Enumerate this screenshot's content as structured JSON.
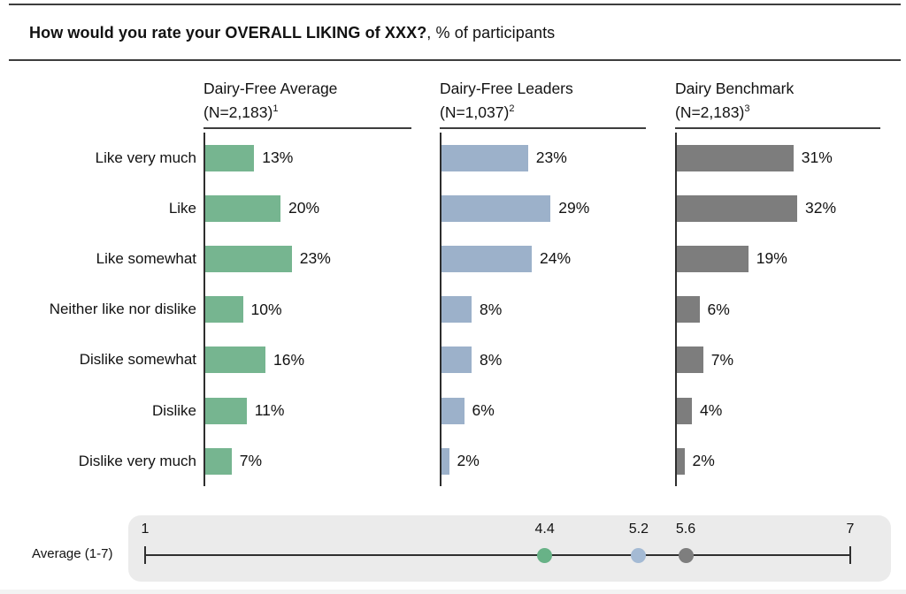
{
  "title": {
    "question": "How would you rate your OVERALL LIKING of XXX?",
    "suffix": ", % of participants"
  },
  "chart_data": {
    "type": "bar",
    "orientation": "horizontal",
    "unit": "%",
    "title": "How would you rate your OVERALL LIKING of XXX?, % of participants",
    "categories": [
      "Like very much",
      "Like",
      "Like somewhat",
      "Neither like nor dislike",
      "Dislike somewhat",
      "Dislike",
      "Dislike very much"
    ],
    "series": [
      {
        "name": "Dairy-Free Average",
        "sample": "(N=2,183)",
        "footnote": "1",
        "values": [
          13,
          20,
          23,
          10,
          16,
          11,
          7
        ],
        "color": "#76b590",
        "dot_color": "#68b287",
        "average": 4.4,
        "average_label": "4.4"
      },
      {
        "name": "Dairy-Free Leaders",
        "sample": "(N=1,037)",
        "footnote": "2",
        "values": [
          23,
          29,
          24,
          8,
          8,
          6,
          2
        ],
        "color": "#9cb1ca",
        "dot_color": "#a4bad4",
        "average": 5.2,
        "average_label": "5.2"
      },
      {
        "name": "Dairy Benchmark",
        "sample": "(N=2,183)",
        "footnote": "3",
        "values": [
          31,
          32,
          19,
          6,
          7,
          4,
          2
        ],
        "color": "#7d7d7d",
        "dot_color": "#7e7e7e",
        "average": 5.6,
        "average_label": "5.6"
      }
    ],
    "scale": {
      "label": "Average (1-7)",
      "min": 1,
      "max": 7,
      "min_label": "1",
      "max_label": "7"
    },
    "value_label_format": "{value}%",
    "legend_position": "none",
    "grid": false
  }
}
